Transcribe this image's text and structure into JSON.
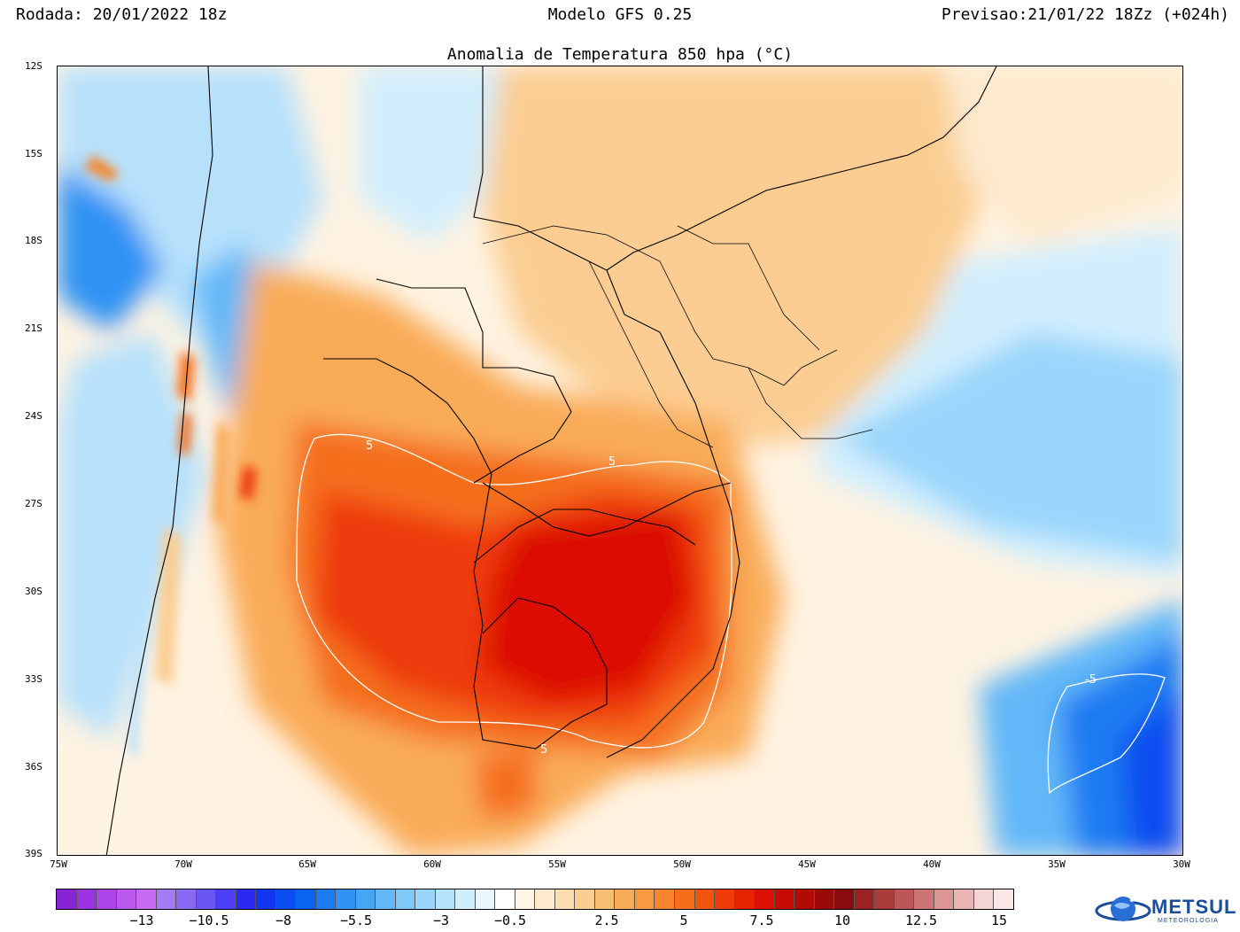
{
  "header": {
    "run": "Rodada: 20/01/2022 18z",
    "model": "Modelo GFS 0.25",
    "forecast": "Previsao:21/01/22 18Zz (+024h)"
  },
  "title": "Anomalia de Temperatura 850 hpa (°C)",
  "map": {
    "lat_labels": [
      "12S",
      "15S",
      "18S",
      "21S",
      "24S",
      "27S",
      "30S",
      "33S",
      "36S",
      "39S"
    ],
    "lon_labels": [
      "75W",
      "70W",
      "65W",
      "60W",
      "55W",
      "50W",
      "45W",
      "40W",
      "35W",
      "30W"
    ],
    "contour_labels": [
      "5",
      "5",
      "5",
      "-5"
    ],
    "icons": [
      "temperature-anomaly-field",
      "country-borders",
      "state-borders",
      "coastline"
    ]
  },
  "colorbar": {
    "colors": [
      "#8a22d6",
      "#9a33e0",
      "#ab45e8",
      "#bb58ee",
      "#c96bf2",
      "#a57af5",
      "#8a6af5",
      "#6a55f5",
      "#4d3ff5",
      "#2a2af0",
      "#1436f0",
      "#0a4ef0",
      "#0a64f2",
      "#1b7cf2",
      "#2f92f4",
      "#46a6f6",
      "#62b8f8",
      "#7ec8fa",
      "#9ad6fb",
      "#b6e2fc",
      "#d1eefd",
      "#e8f6fe",
      "#ffffff",
      "#fff5e6",
      "#fde9cc",
      "#fcdcb0",
      "#fbcd92",
      "#fabd74",
      "#f9ac58",
      "#f89a40",
      "#f7852c",
      "#f56e1c",
      "#f25510",
      "#ee3b08",
      "#e82304",
      "#dc1002",
      "#c80a02",
      "#b20a05",
      "#9c0a08",
      "#8a0b0e",
      "#9a2222",
      "#ac3b3b",
      "#bd5656",
      "#cd7575",
      "#dc9595",
      "#e9b5b5",
      "#f4d4d4",
      "#fae8e8"
    ],
    "labels": [
      "−13",
      "−10.5",
      "−8",
      "−5.5",
      "−3",
      "−0.5",
      "2.5",
      "5",
      "7.5",
      "10",
      "12.5",
      "15"
    ]
  },
  "logo": {
    "name": "METSUL",
    "tagline": "METEOROLOGIA"
  }
}
